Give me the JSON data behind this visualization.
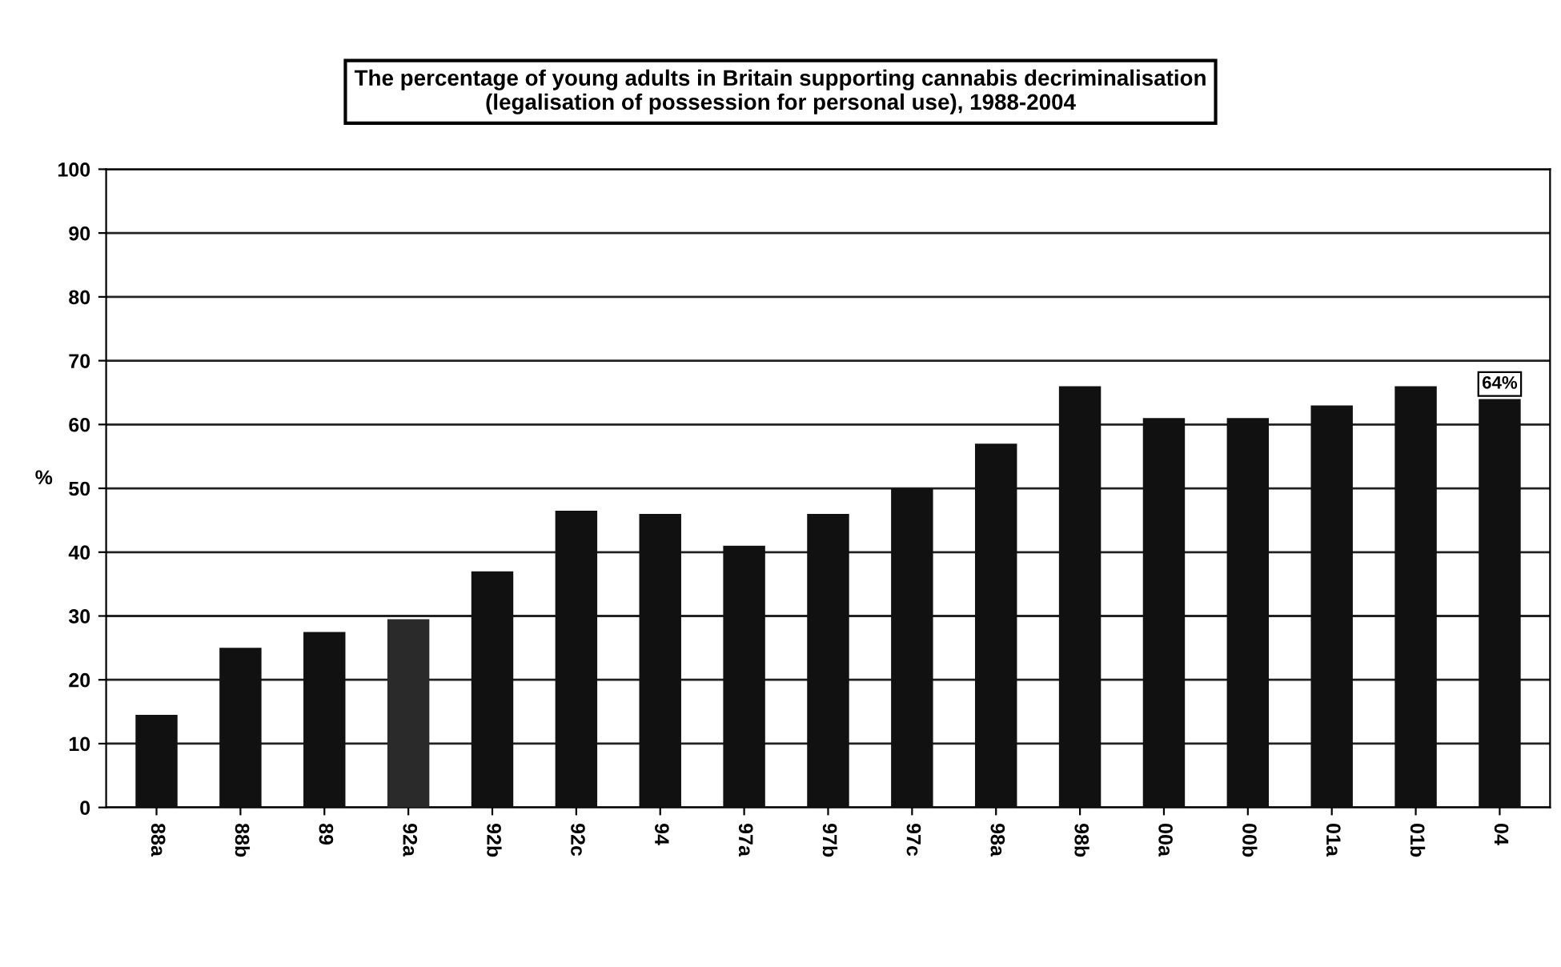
{
  "chart_data": {
    "type": "bar",
    "title": "The percentage of young adults in Britain supporting cannabis decriminalisation\n(legalisation of possession for personal use), 1988-2004",
    "ylabel": "%",
    "categories": [
      "88a",
      "88b",
      "89",
      "92a",
      "92b",
      "92c",
      "94",
      "97a",
      "97b",
      "97c",
      "98a",
      "98b",
      "00a",
      "00b",
      "01a",
      "01b",
      "04"
    ],
    "values": [
      14.5,
      25,
      27.5,
      29.5,
      37,
      46.5,
      46,
      41,
      46,
      50,
      57,
      66,
      61,
      61,
      63,
      66,
      64
    ],
    "value_labels": [
      null,
      null,
      null,
      null,
      null,
      null,
      null,
      null,
      null,
      null,
      null,
      null,
      null,
      null,
      null,
      null,
      "64%"
    ],
    "colors": [
      "#111111",
      "#111111",
      "#111111",
      "#2a2a2a",
      "#111111",
      "#111111",
      "#111111",
      "#111111",
      "#111111",
      "#111111",
      "#111111",
      "#111111",
      "#111111",
      "#111111",
      "#111111",
      "#111111",
      "#111111"
    ],
    "ylim": [
      0,
      100
    ],
    "yticks": [
      0,
      10,
      20,
      30,
      40,
      50,
      60,
      70,
      80,
      90,
      100
    ],
    "grid": "y",
    "legend": false
  }
}
